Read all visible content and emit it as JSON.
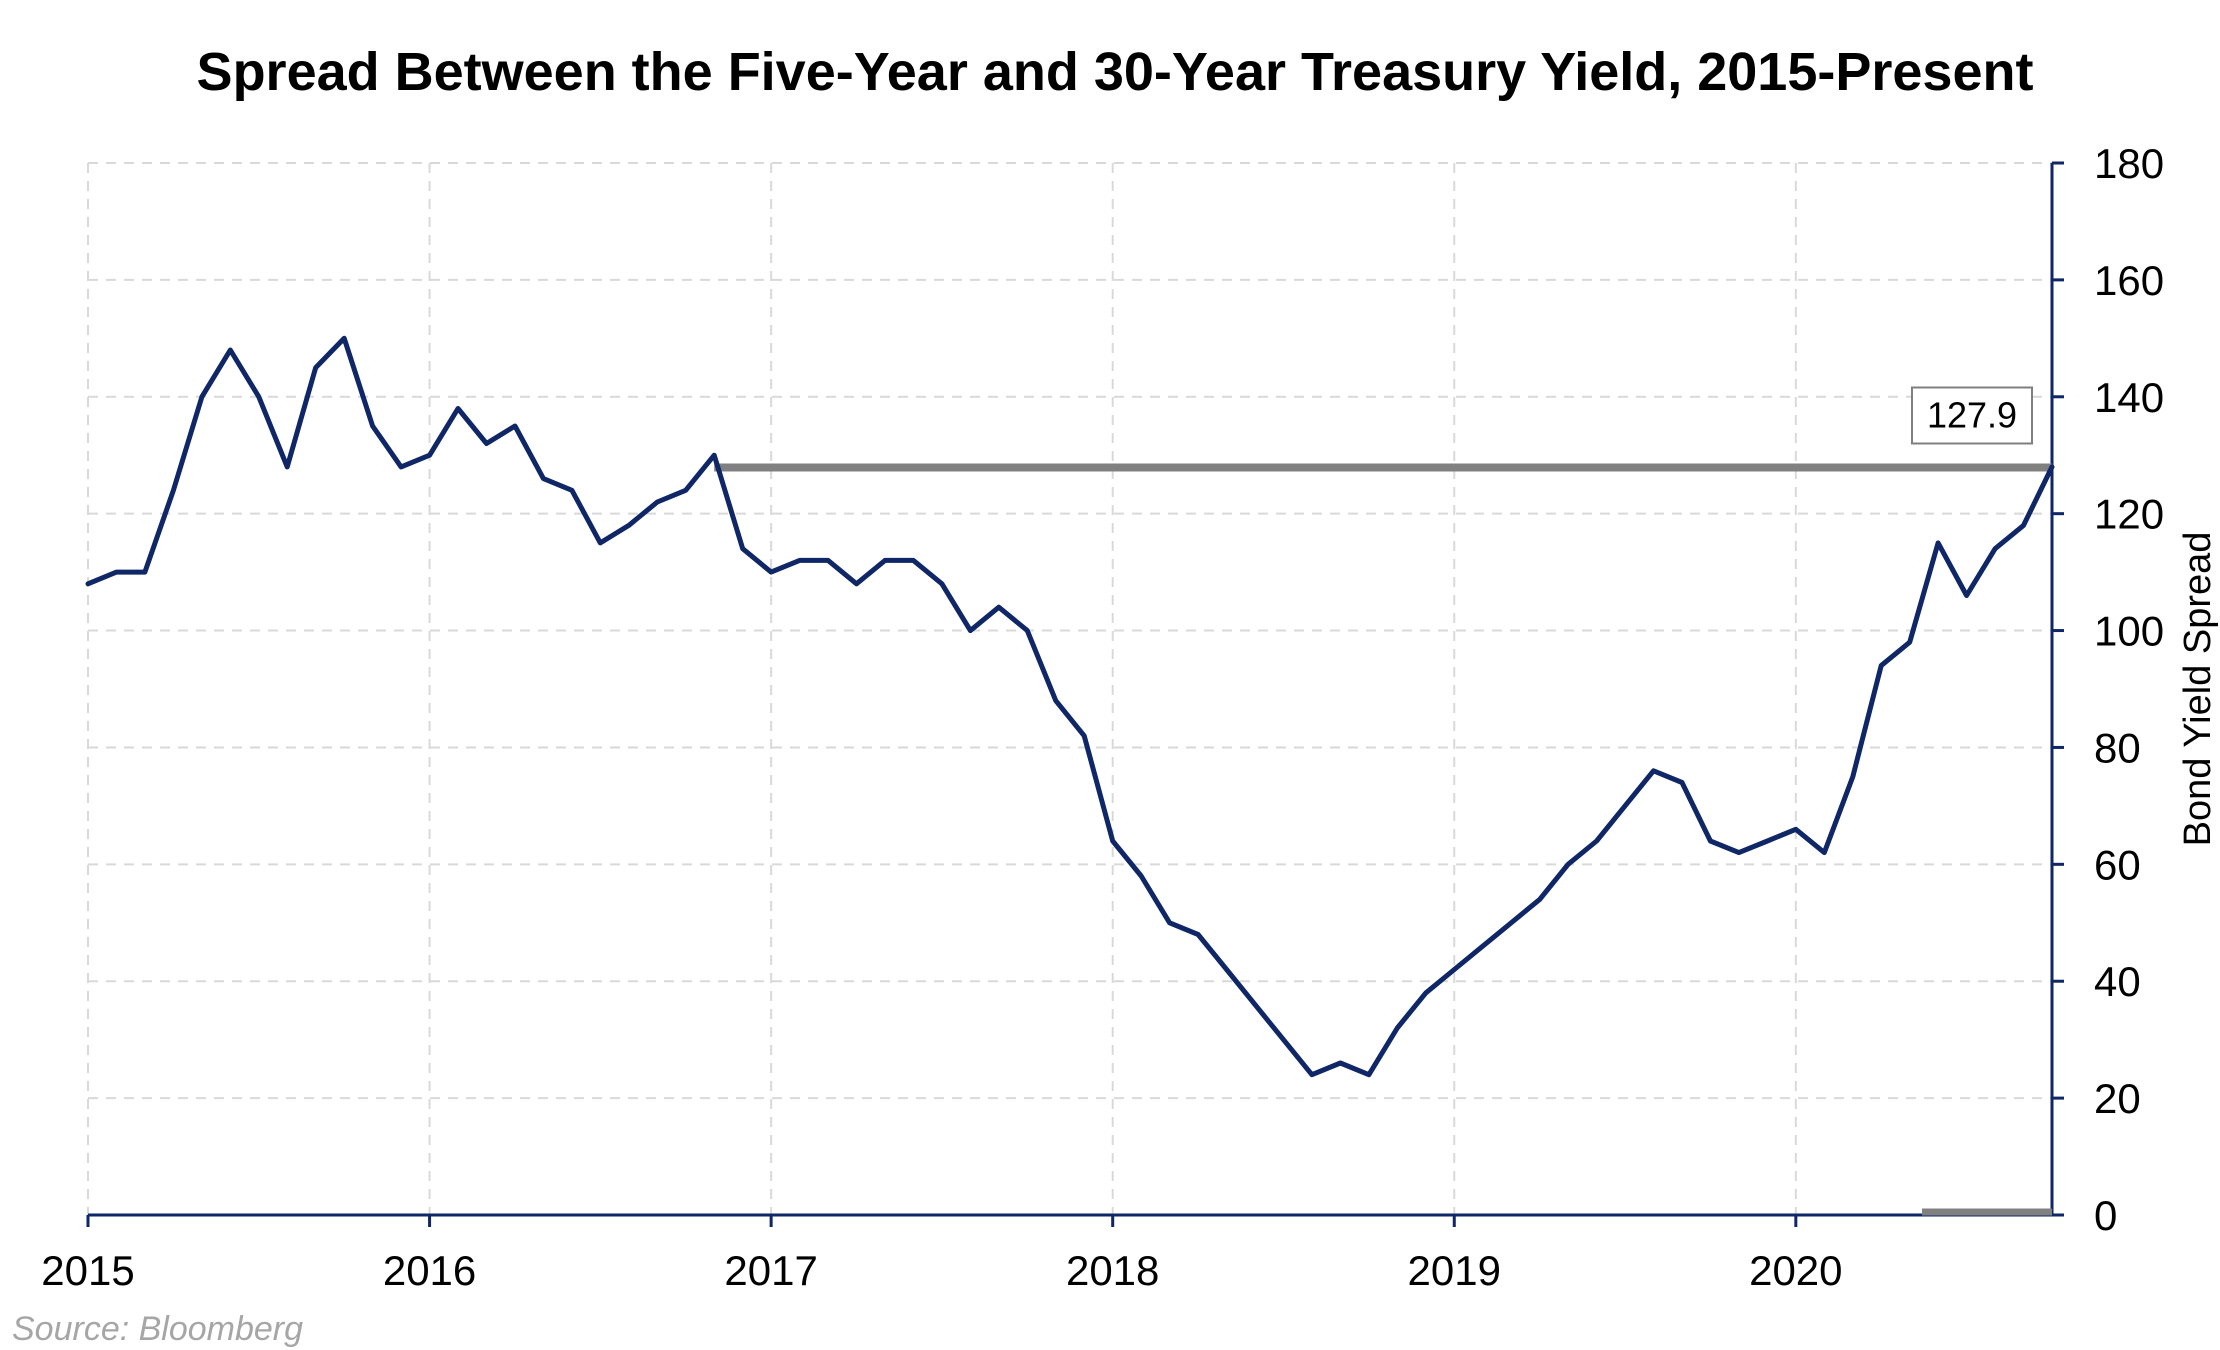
{
  "chart_data": {
    "type": "line",
    "title": "Spread Between the Five-Year and 30-Year Treasury Yield, 2015-Present",
    "xlabel": "",
    "ylabel": "Bond Yield Spread",
    "x_tick_labels": [
      "2015",
      "2016",
      "2017",
      "2018",
      "2019",
      "2020"
    ],
    "y_tick_labels": [
      "0",
      "20",
      "40",
      "60",
      "80",
      "100",
      "120",
      "140",
      "160",
      "180"
    ],
    "xlim": [
      "2015-01",
      "2020-10"
    ],
    "ylim": [
      0,
      180
    ],
    "y_axis_position": "right",
    "grid": true,
    "legend": "none",
    "colors": {
      "series": "#0f2667",
      "reference": "#808080",
      "grid": "#d9d9d9",
      "axis": "#0f2667"
    },
    "series": [
      {
        "x": [
          "2015-01",
          "2015-02",
          "2015-03",
          "2015-04",
          "2015-05",
          "2015-06",
          "2015-07",
          "2015-08",
          "2015-09",
          "2015-10",
          "2015-11",
          "2015-12",
          "2016-01",
          "2016-02",
          "2016-03",
          "2016-04",
          "2016-05",
          "2016-06",
          "2016-07",
          "2016-08",
          "2016-09",
          "2016-10",
          "2016-11",
          "2016-12",
          "2017-01",
          "2017-02",
          "2017-03",
          "2017-04",
          "2017-05",
          "2017-06",
          "2017-07",
          "2017-08",
          "2017-09",
          "2017-10",
          "2017-11",
          "2017-12",
          "2018-01",
          "2018-02",
          "2018-03",
          "2018-04",
          "2018-05",
          "2018-06",
          "2018-07",
          "2018-08",
          "2018-09",
          "2018-10",
          "2018-11",
          "2018-12",
          "2019-01",
          "2019-02",
          "2019-03",
          "2019-04",
          "2019-05",
          "2019-06",
          "2019-07",
          "2019-08",
          "2019-09",
          "2019-10",
          "2019-11",
          "2019-12",
          "2020-01",
          "2020-02",
          "2020-03",
          "2020-04",
          "2020-05",
          "2020-06",
          "2020-07",
          "2020-08",
          "2020-09",
          "2020-10"
        ],
        "values": [
          108,
          110,
          110,
          124,
          140,
          148,
          140,
          128,
          145,
          150,
          135,
          128,
          130,
          138,
          132,
          135,
          126,
          124,
          115,
          118,
          122,
          124,
          130,
          114,
          110,
          112,
          112,
          108,
          112,
          112,
          108,
          100,
          104,
          100,
          88,
          82,
          64,
          58,
          50,
          48,
          42,
          36,
          30,
          24,
          26,
          24,
          32,
          38,
          42,
          46,
          50,
          54,
          60,
          64,
          70,
          76,
          74,
          64,
          62,
          64,
          66,
          62,
          75,
          94,
          98,
          115,
          106,
          114,
          118,
          128
        ]
      }
    ],
    "reference_line": {
      "value": 127.9,
      "from": "2016-11",
      "to": "2020-10",
      "label": "127.9"
    },
    "annotations": {
      "source": "Source: Bloomberg"
    }
  }
}
